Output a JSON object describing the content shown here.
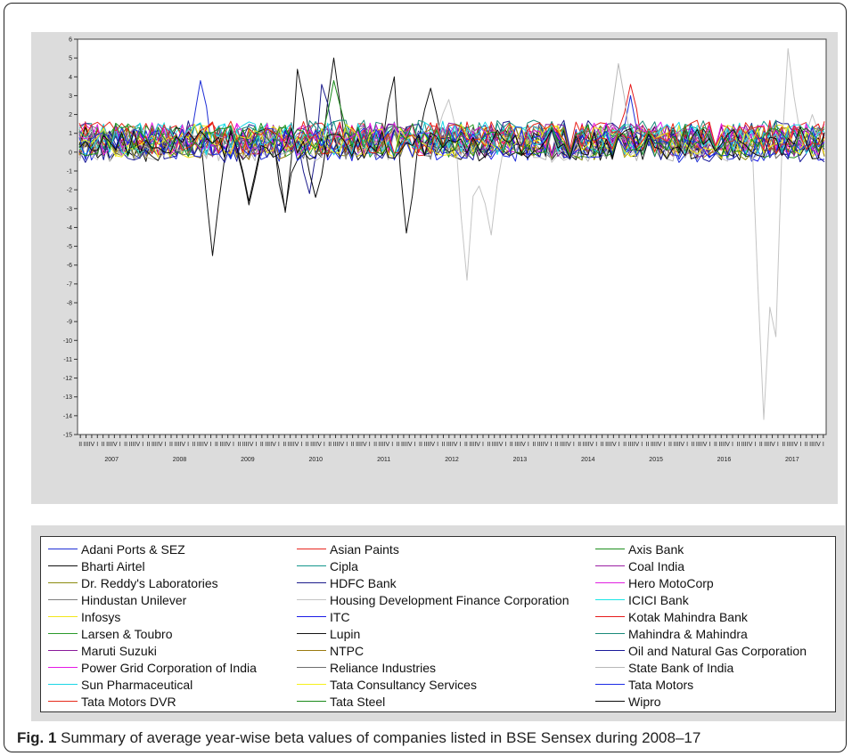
{
  "caption": {
    "label": "Fig. 1",
    "text": "Summary of average year-wise beta values of companies listed in BSE Sensex during 2008–17"
  },
  "chart_data": {
    "type": "line",
    "ylim": [
      -15,
      6
    ],
    "yticks": [
      6,
      5,
      4,
      3,
      2,
      1,
      0,
      -1,
      -2,
      -3,
      -4,
      -5,
      -6,
      -7,
      -8,
      -9,
      -10,
      -11,
      -12,
      -13,
      -14,
      -15
    ],
    "quarter_labels": [
      "II",
      "III",
      "IV",
      "I",
      "II",
      "III",
      "IV",
      "I",
      "II",
      "III",
      "IV",
      "I",
      "II",
      "III",
      "IV",
      "I",
      "II",
      "III",
      "IV",
      "I",
      "II",
      "III",
      "IV",
      "I",
      "II",
      "III",
      "IV",
      "I",
      "II",
      "III",
      "IV",
      "I",
      "II",
      "III",
      "IV",
      "I",
      "II",
      "III",
      "IV",
      "I",
      "II",
      "III",
      "IV",
      "I",
      "II",
      "III",
      "IV",
      "I",
      "II",
      "III",
      "IV",
      "I",
      "II",
      "III",
      "IV",
      "I",
      "II",
      "III",
      "IV",
      "I",
      "II",
      "III",
      "IV",
      "I",
      "II",
      "III",
      "IV",
      "I",
      "II",
      "III",
      "IV",
      "I",
      "II",
      "III",
      "IV",
      "I",
      "II",
      "III",
      "IV",
      "I",
      "II",
      "III",
      "IV",
      "I",
      "II",
      "III",
      "IV",
      "I",
      "II",
      "III",
      "IV",
      "I",
      "II",
      "III",
      "IV",
      "I",
      "II",
      "III",
      "IV",
      "I",
      "II",
      "III",
      "IV",
      "I",
      "II",
      "III",
      "IV",
      "I",
      "II",
      "III",
      "IV",
      "I",
      "II",
      "III",
      "IV",
      "I",
      "II",
      "III",
      "IV",
      "I",
      "II",
      "III",
      "IV",
      "I",
      "II",
      "III",
      "IV",
      "I",
      "II",
      "III",
      "IV",
      "I"
    ],
    "year_labels": [
      "2007",
      "2008",
      "2009",
      "2010",
      "2011",
      "2012",
      "2013",
      "2014",
      "2015",
      "2016",
      "2017"
    ],
    "grid": false,
    "legend_position": "bottom",
    "series": [
      {
        "name": "Adani Ports & SEZ",
        "color": "#1f2fd6"
      },
      {
        "name": "Asian Paints",
        "color": "#e8251f"
      },
      {
        "name": "Axis Bank",
        "color": "#1e8f1e"
      },
      {
        "name": "Bharti Airtel",
        "color": "#111111"
      },
      {
        "name": "Cipla",
        "color": "#14968c"
      },
      {
        "name": "Coal India",
        "color": "#9b1fa3"
      },
      {
        "name": "Dr. Reddy's Laboratories",
        "color": "#8c8c10"
      },
      {
        "name": "HDFC Bank",
        "color": "#1c1c8c"
      },
      {
        "name": "Hero MotoCorp",
        "color": "#e020e0"
      },
      {
        "name": "Hindustan Unilever",
        "color": "#7f7f7f"
      },
      {
        "name": "Housing Development Finance Corporation",
        "color": "#c4c4c4"
      },
      {
        "name": "ICICI Bank",
        "color": "#19e6e6"
      },
      {
        "name": "Infosys",
        "color": "#f2e61a"
      },
      {
        "name": "ITC",
        "color": "#1a1ae6"
      },
      {
        "name": "Kotak Mahindra Bank",
        "color": "#e61a1a"
      },
      {
        "name": "Larsen & Toubro",
        "color": "#2a9a2a"
      },
      {
        "name": "Lupin",
        "color": "#141414"
      },
      {
        "name": "Mahindra & Mahindra",
        "color": "#1a8a7a"
      },
      {
        "name": "Maruti Suzuki",
        "color": "#8a1a9a"
      },
      {
        "name": "NTPC",
        "color": "#9a7a10"
      },
      {
        "name": "Oil and Natural Gas Corporation",
        "color": "#1a1a9a"
      },
      {
        "name": "Power Grid Corporation of India",
        "color": "#e61ae6"
      },
      {
        "name": "Reliance Industries",
        "color": "#6e6e6e"
      },
      {
        "name": "State Bank of India",
        "color": "#b8b8b8"
      },
      {
        "name": "Sun Pharmaceutical",
        "color": "#1ad6e6"
      },
      {
        "name": "Tata Consultancy Services",
        "color": "#f5f01a"
      },
      {
        "name": "Tata Motors",
        "color": "#1a2ae6"
      },
      {
        "name": "Tata Motors DVR",
        "color": "#e62a1a"
      },
      {
        "name": "Tata Steel",
        "color": "#1a8a1a"
      },
      {
        "name": "Wipro",
        "color": "#0a0a0a"
      }
    ]
  }
}
